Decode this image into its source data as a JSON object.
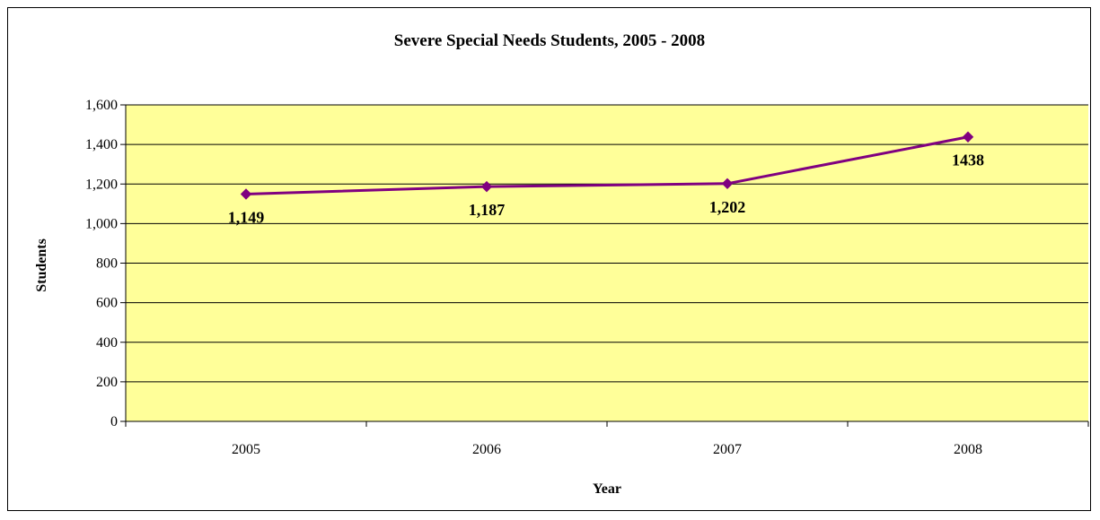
{
  "chart_data": {
    "type": "line",
    "title": "Severe Special Needs Students, 2005 - 2008",
    "xlabel": "Year",
    "ylabel": "Students",
    "categories": [
      "2005",
      "2006",
      "2007",
      "2008"
    ],
    "series": [
      {
        "values": [
          1149,
          1187,
          1202,
          1438
        ],
        "data_labels": [
          "1,149",
          "1,187",
          "1,202",
          "1438"
        ],
        "color": "#800080",
        "marker": "diamond"
      }
    ],
    "ylim": [
      0,
      1600
    ],
    "yticks": [
      0,
      200,
      400,
      600,
      800,
      1000,
      1200,
      1400,
      1600
    ],
    "ytick_labels": [
      "0",
      "200",
      "400",
      "600",
      "800",
      "1,000",
      "1,200",
      "1,400",
      "1,600"
    ],
    "grid": true,
    "legend": "none",
    "plot_background": "#FFFF99",
    "gridline_color": "#000000"
  }
}
